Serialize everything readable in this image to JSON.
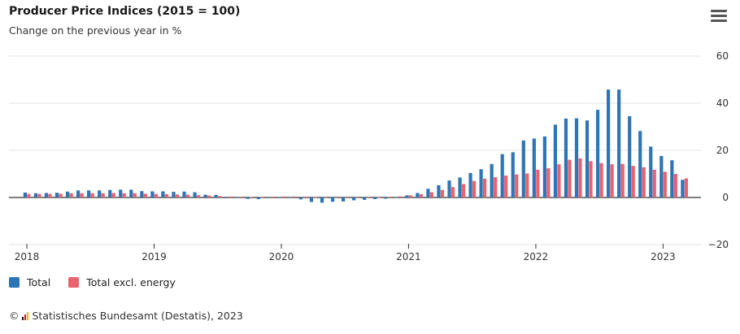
{
  "header": {
    "title": "Producer Price Indices (2015 = 100)",
    "subtitle": "Change on the previous year in %"
  },
  "menu": {
    "icon": "hamburger-menu-icon"
  },
  "legend": [
    {
      "label": "Total",
      "color": "#2f75b5"
    },
    {
      "label": "Total excl. energy",
      "color": "#e8626f"
    }
  ],
  "footer": {
    "prefix": "©",
    "logo_icon": "destatis-logo-icon",
    "text": "Statistisches Bundesamt (Destatis), 2023"
  },
  "chart_data": {
    "type": "bar",
    "x_tick_labels": [
      "2018",
      "2019",
      "2020",
      "2021",
      "2022",
      "2023"
    ],
    "y_tick_labels": [
      "60",
      "40",
      "20",
      "0",
      "−20"
    ],
    "ylim": [
      -20,
      60
    ],
    "y_ticks": [
      60,
      40,
      20,
      0,
      -20
    ],
    "grid": true,
    "legend_position": "bottom-left",
    "categories": [
      "2018-01",
      "2018-02",
      "2018-03",
      "2018-04",
      "2018-05",
      "2018-06",
      "2018-07",
      "2018-08",
      "2018-09",
      "2018-10",
      "2018-11",
      "2018-12",
      "2019-01",
      "2019-02",
      "2019-03",
      "2019-04",
      "2019-05",
      "2019-06",
      "2019-07",
      "2019-08",
      "2019-09",
      "2019-10",
      "2019-11",
      "2019-12",
      "2020-01",
      "2020-02",
      "2020-03",
      "2020-04",
      "2020-05",
      "2020-06",
      "2020-07",
      "2020-08",
      "2020-09",
      "2020-10",
      "2020-11",
      "2020-12",
      "2021-01",
      "2021-02",
      "2021-03",
      "2021-04",
      "2021-05",
      "2021-06",
      "2021-07",
      "2021-08",
      "2021-09",
      "2021-10",
      "2021-11",
      "2021-12",
      "2022-01",
      "2022-02",
      "2022-03",
      "2022-04",
      "2022-05",
      "2022-06",
      "2022-07",
      "2022-08",
      "2022-09",
      "2022-10",
      "2022-11",
      "2022-12",
      "2023-01",
      "2023-02",
      "2023-03"
    ],
    "series": [
      {
        "name": "Total",
        "values": [
          2.1,
          1.8,
          1.9,
          2.0,
          2.5,
          3.0,
          3.0,
          3.0,
          3.2,
          3.3,
          3.3,
          2.7,
          2.6,
          2.6,
          2.4,
          2.5,
          2.2,
          1.2,
          1.1,
          0.3,
          -0.1,
          -0.6,
          -0.7,
          -0.2,
          0.2,
          -0.1,
          -0.8,
          -1.9,
          -2.2,
          -1.8,
          -1.7,
          -1.2,
          -1.0,
          -0.7,
          -0.5,
          0.2,
          0.9,
          1.9,
          3.7,
          5.2,
          7.2,
          8.5,
          10.4,
          12.0,
          14.2,
          18.4,
          19.2,
          24.2,
          25.0,
          25.9,
          30.9,
          33.5,
          33.6,
          32.7,
          37.2,
          45.8,
          45.8,
          34.5,
          28.2,
          21.6,
          17.6,
          15.8,
          7.5
        ]
      },
      {
        "name": "Total excl. energy",
        "values": [
          1.5,
          1.5,
          1.5,
          1.6,
          1.8,
          1.8,
          1.8,
          1.8,
          1.9,
          1.8,
          1.8,
          1.6,
          1.5,
          1.4,
          1.3,
          1.2,
          1.0,
          0.8,
          0.6,
          0.4,
          0.3,
          0.2,
          0.2,
          0.3,
          0.4,
          0.4,
          0.3,
          0.1,
          -0.1,
          -0.2,
          -0.2,
          -0.1,
          0.0,
          0.1,
          0.3,
          0.5,
          0.9,
          1.4,
          2.2,
          3.2,
          4.4,
          5.7,
          7.0,
          8.0,
          8.6,
          9.3,
          9.8,
          10.2,
          11.8,
          12.4,
          14.1,
          16.0,
          16.6,
          15.4,
          14.6,
          14.1,
          14.2,
          13.4,
          12.8,
          11.8,
          10.9,
          10.0,
          8.1
        ]
      }
    ]
  }
}
